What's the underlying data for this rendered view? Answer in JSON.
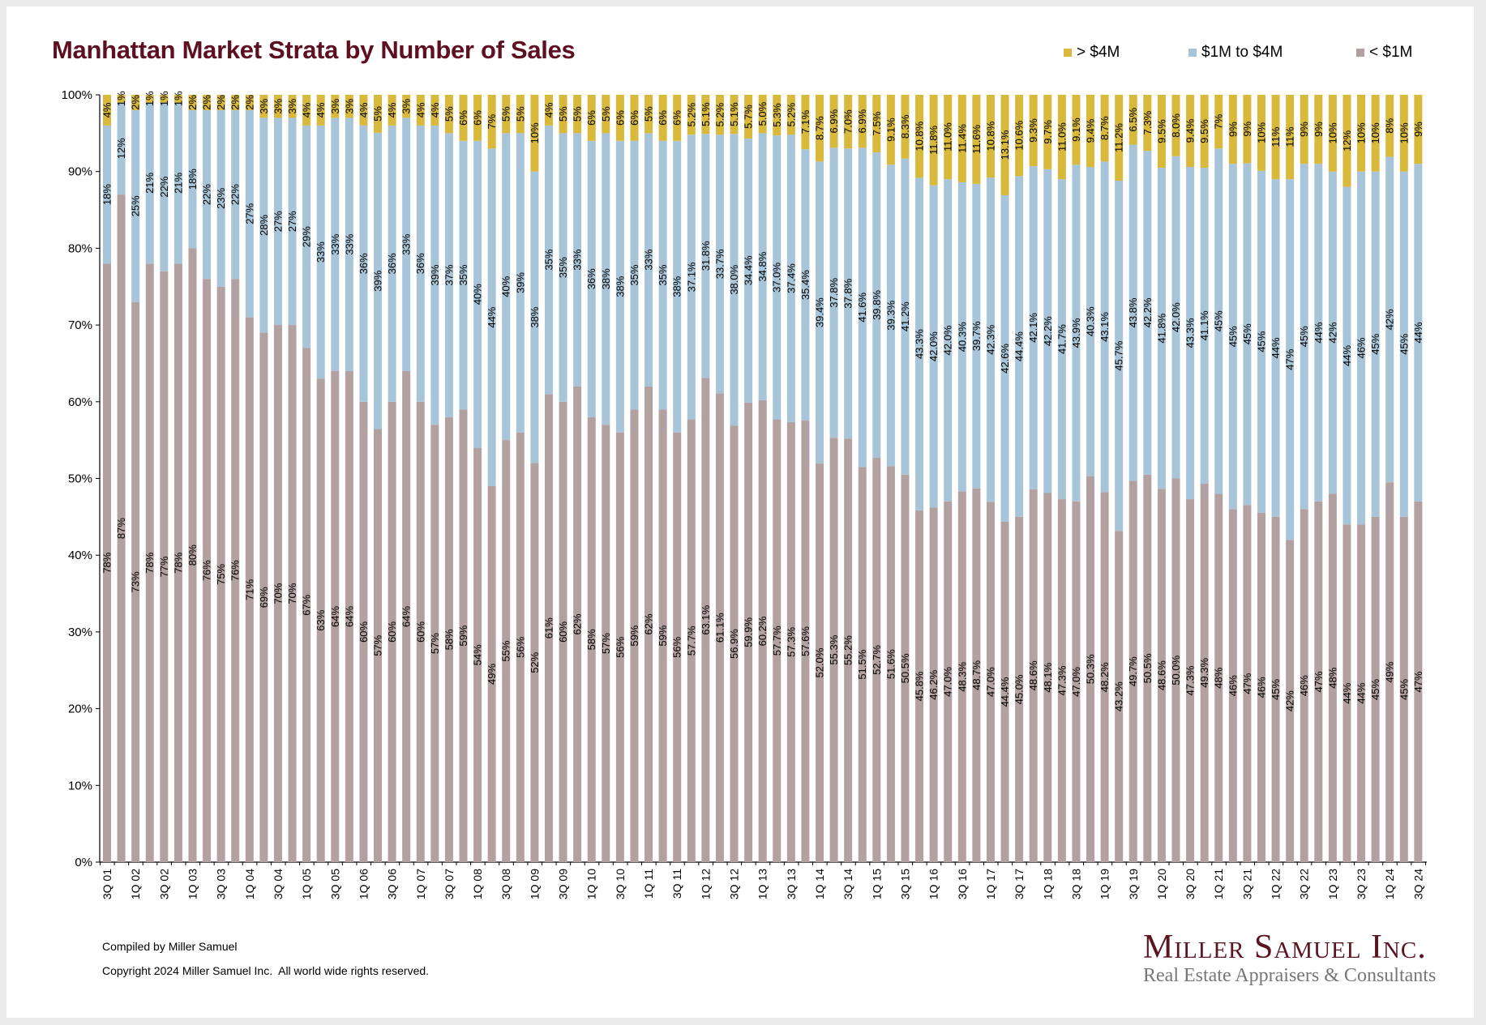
{
  "chart_data": {
    "type": "bar",
    "stacked": true,
    "percent_stacked": true,
    "title": "Manhattan Market Strata by Number of Sales",
    "xlabel": "",
    "ylabel": "",
    "ylim": [
      0,
      100
    ],
    "y_ticks": [
      "0%",
      "10%",
      "20%",
      "30%",
      "40%",
      "50%",
      "60%",
      "70%",
      "80%",
      "90%",
      "100%"
    ],
    "grid": false,
    "legend_position": "top-right",
    "x_tick_labels": [
      "3Q 01",
      "1Q 02",
      "3Q 02",
      "1Q 03",
      "3Q 03",
      "1Q 04",
      "3Q 04",
      "1Q 05",
      "3Q 05",
      "1Q 06",
      "3Q 06",
      "1Q 07",
      "3Q 07",
      "1Q 08",
      "3Q 08",
      "1Q 09",
      "3Q 09",
      "1Q 10",
      "3Q 10",
      "1Q 11",
      "3Q 11",
      "1Q 12",
      "3Q 12",
      "1Q 13",
      "3Q 13",
      "1Q 14",
      "3Q 14",
      "1Q 15",
      "3Q 15",
      "1Q 16",
      "3Q 16",
      "1Q 17",
      "3Q 17",
      "1Q 18",
      "3Q 18",
      "1Q 19",
      "3Q 19",
      "1Q 20",
      "3Q 20",
      "1Q 21",
      "3Q 21",
      "1Q 22",
      "3Q 22",
      "1Q 23",
      "3Q 23",
      "1Q 24",
      "3Q 24"
    ],
    "series": [
      {
        "name": "< $1M",
        "color": "#b3a0a0",
        "values": [
          78,
          87,
          73,
          78,
          77,
          78,
          80,
          76,
          75,
          76,
          71,
          69,
          70,
          70,
          67,
          63,
          64,
          64,
          60,
          57,
          60,
          64,
          60,
          57,
          58,
          59,
          54,
          49,
          55,
          56,
          52,
          61,
          60,
          62,
          58,
          57,
          56,
          59,
          62,
          59,
          56,
          57.7,
          63.1,
          61.1,
          56.9,
          59.9,
          60.2,
          57.7,
          57.3,
          57.6,
          52.0,
          55.3,
          55.2,
          51.5,
          52.7,
          51.6,
          50.5,
          45.8,
          46.2,
          47.0,
          48.3,
          48.7,
          47.0,
          44.4,
          45.0,
          48.6,
          48.1,
          47.3,
          47.0,
          50.3,
          48.2,
          43.2,
          49.7,
          50.5,
          48.6,
          50.0,
          47.3,
          49.3,
          48,
          46,
          47,
          46,
          45,
          42,
          46,
          47,
          48,
          44,
          44,
          45,
          49,
          45,
          47
        ]
      },
      {
        "name": "$1M to $4M",
        "color": "#a8c4d8",
        "values": [
          18,
          12,
          25,
          21,
          22,
          21,
          18,
          22,
          23,
          22,
          27,
          28,
          27,
          27,
          29,
          33,
          33,
          33,
          36,
          39,
          36,
          33,
          36,
          39,
          37,
          35,
          40,
          44,
          40,
          39,
          38,
          35,
          35,
          33,
          36,
          38,
          38,
          35,
          33,
          35,
          38,
          37.1,
          31.8,
          33.7,
          38.0,
          34.4,
          34.8,
          37.0,
          37.4,
          35.4,
          39.4,
          37.8,
          37.8,
          41.6,
          39.8,
          39.3,
          41.2,
          43.3,
          42.0,
          42.0,
          40.3,
          39.7,
          42.3,
          42.6,
          44.4,
          42.1,
          42.2,
          41.7,
          43.9,
          40.3,
          43.1,
          45.7,
          43.8,
          42.2,
          41.8,
          42.0,
          43.3,
          41.1,
          45,
          45,
          45,
          45,
          44,
          47,
          45,
          44,
          42,
          44,
          46,
          45,
          42,
          45,
          44
        ]
      },
      {
        "name": "> $4M",
        "color": "#d8b93c",
        "values": [
          4,
          1,
          2,
          1,
          1,
          1,
          2,
          2,
          2,
          2,
          2,
          3,
          3,
          3,
          4,
          4,
          3,
          3,
          4,
          5,
          4,
          3,
          4,
          4,
          5,
          6,
          6,
          7,
          5,
          5,
          10,
          4,
          5,
          5,
          6,
          5,
          6,
          6,
          5,
          6,
          6,
          5.2,
          5.1,
          5.2,
          5.1,
          5.7,
          5.0,
          5.3,
          5.2,
          7.1,
          8.7,
          6.9,
          7.0,
          6.9,
          7.5,
          9.1,
          8.3,
          10.8,
          11.8,
          11.0,
          11.4,
          11.6,
          10.8,
          13.1,
          10.6,
          9.3,
          9.7,
          11.0,
          9.1,
          9.4,
          8.7,
          11.2,
          6.5,
          7.3,
          9.5,
          8.0,
          9.4,
          9.5,
          7,
          9,
          9,
          10,
          11,
          11,
          9,
          9,
          10,
          12,
          10,
          10,
          8,
          10,
          9
        ]
      }
    ]
  },
  "legend": [
    {
      "label": "> $4M",
      "color": "#d8b93c"
    },
    {
      "label": "$1M to $4M",
      "color": "#a8c4d8"
    },
    {
      "label": "< $1M",
      "color": "#b3a0a0"
    }
  ],
  "footer": {
    "compiled": "Compiled by Miller Samuel",
    "copyright": "Copyright 2024 Miller Samuel Inc.  All world wide rights reserved."
  },
  "logo": {
    "name": "Miller Samuel Inc.",
    "tagline": "Real Estate Appraisers & Consultants"
  },
  "colors": {
    "title": "#5c1020",
    "logo": "#5a1520"
  }
}
